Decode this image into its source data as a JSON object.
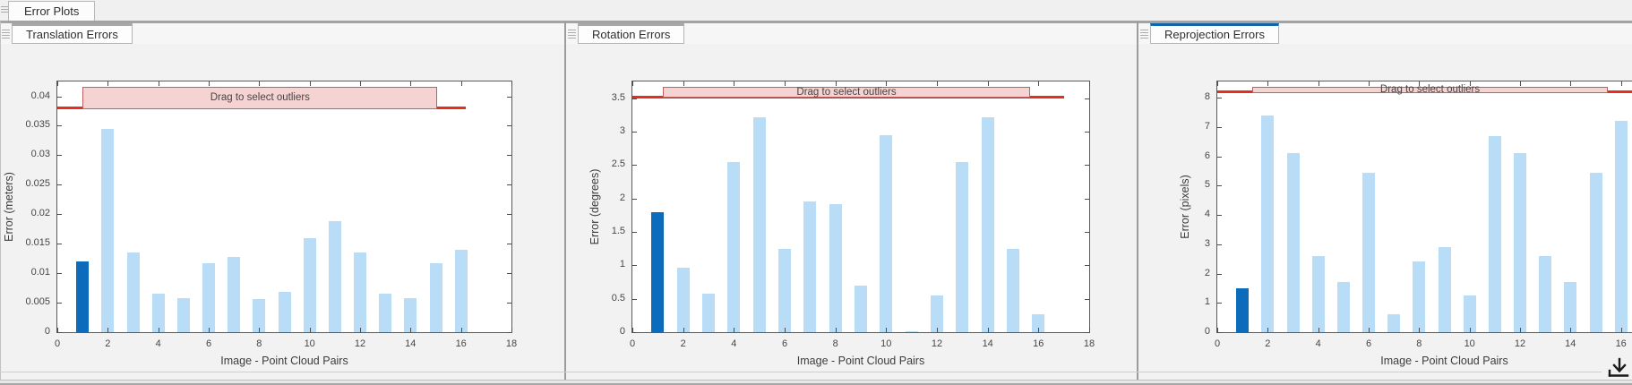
{
  "window": {
    "top_tab_label": "Error Plots"
  },
  "colors": {
    "bar_light": "#b9ddf6",
    "bar_selected": "#0c6cbb",
    "threshold_red": "#e62e1e",
    "annotation_fill": "#f6d3d3",
    "active_tab_accent": "#0e67ad"
  },
  "chart_data": [
    {
      "type": "bar",
      "tab": "Translation Errors",
      "title": "",
      "xlabel": "Image - Point Cloud Pairs",
      "ylabel": "Error (meters)",
      "annotation": "Drag to select outliers",
      "x": [
        1,
        2,
        3,
        4,
        5,
        6,
        7,
        8,
        9,
        10,
        11,
        12,
        13,
        14,
        15,
        16
      ],
      "values": [
        0.012,
        0.0345,
        0.0135,
        0.0066,
        0.0058,
        0.0117,
        0.0127,
        0.0056,
        0.0068,
        0.016,
        0.0189,
        0.0135,
        0.0066,
        0.0058,
        0.0117,
        0.014
      ],
      "selected_bar": 0,
      "threshold": 0.038,
      "xlim": [
        0,
        18
      ],
      "ylim": [
        0,
        0.0425
      ],
      "xticks": [
        0,
        2,
        4,
        6,
        8,
        10,
        12,
        14,
        16,
        18
      ],
      "xtick_labels": [
        "0",
        "2",
        "4",
        "6",
        "8",
        "10",
        "12",
        "14",
        "16",
        "18"
      ],
      "yticks": [
        0,
        0.005,
        0.01,
        0.015,
        0.02,
        0.025,
        0.03,
        0.035,
        0.04
      ],
      "ytick_labels": [
        "0",
        "0.005",
        "0.01",
        "0.015",
        "0.02",
        "0.025",
        "0.03",
        "0.035",
        "0.04"
      ],
      "red_span": 16.2,
      "box_span": [
        1,
        15
      ],
      "ylabel_offset": 54,
      "grid": false,
      "legend": null
    },
    {
      "type": "bar",
      "tab": "Rotation Errors",
      "title": "",
      "xlabel": "Image - Point Cloud Pairs",
      "ylabel": "Error (degrees)",
      "annotation": "Drag to select outliers",
      "x": [
        1,
        2,
        3,
        4,
        5,
        6,
        7,
        8,
        9,
        10,
        11,
        12,
        13,
        14,
        15,
        16
      ],
      "values": [
        1.8,
        0.97,
        0.57,
        2.55,
        3.22,
        1.25,
        1.95,
        1.92,
        0.7,
        2.95,
        0.02,
        0.55,
        2.55,
        3.22,
        1.25,
        0.27
      ],
      "selected_bar": 0,
      "threshold": 3.52,
      "xlim": [
        0,
        18
      ],
      "ylim": [
        0,
        3.75
      ],
      "xticks": [
        0,
        2,
        4,
        6,
        8,
        10,
        12,
        14,
        16,
        18
      ],
      "xtick_labels": [
        "0",
        "2",
        "4",
        "6",
        "8",
        "10",
        "12",
        "14",
        "16",
        "18"
      ],
      "yticks": [
        0,
        0.5,
        1,
        1.5,
        2,
        2.5,
        3,
        3.5
      ],
      "ytick_labels": [
        "0",
        "0.5",
        "1",
        "1.5",
        "2",
        "2.5",
        "3",
        "3.5"
      ],
      "red_span": 17,
      "box_span": [
        1.2,
        15.6
      ],
      "ylabel_offset": 42,
      "grid": false,
      "legend": null
    },
    {
      "type": "bar",
      "tab": "Reprojection Errors",
      "title": "",
      "xlabel": "Image - Point Cloud Pairs",
      "ylabel": "Error (pixels)",
      "annotation": "Drag to select outliers",
      "x": [
        1,
        2,
        3,
        4,
        5,
        6,
        7,
        8,
        9,
        10,
        11,
        12,
        13,
        14,
        15,
        16
      ],
      "values": [
        1.5,
        7.4,
        6.1,
        2.6,
        1.7,
        5.45,
        0.6,
        2.4,
        2.9,
        1.25,
        6.7,
        6.1,
        2.6,
        1.7,
        5.45,
        7.2
      ],
      "selected_bar": 0,
      "threshold": 8.2,
      "xlim": [
        0,
        18
      ],
      "ylim": [
        0,
        8.55
      ],
      "xticks": [
        0,
        2,
        4,
        6,
        8,
        10,
        12,
        14,
        16,
        18
      ],
      "xtick_labels": [
        "0",
        "2",
        "4",
        "6",
        "8",
        "10",
        "12",
        "14",
        "16",
        "18"
      ],
      "yticks": [
        0,
        1,
        2,
        3,
        4,
        5,
        6,
        7,
        8
      ],
      "ytick_labels": [
        "0",
        "1",
        "2",
        "3",
        "4",
        "5",
        "6",
        "7",
        "8"
      ],
      "red_span": 18,
      "box_span": [
        1.4,
        15.4
      ],
      "ylabel_offset": 36,
      "grid": false,
      "legend": null
    }
  ]
}
